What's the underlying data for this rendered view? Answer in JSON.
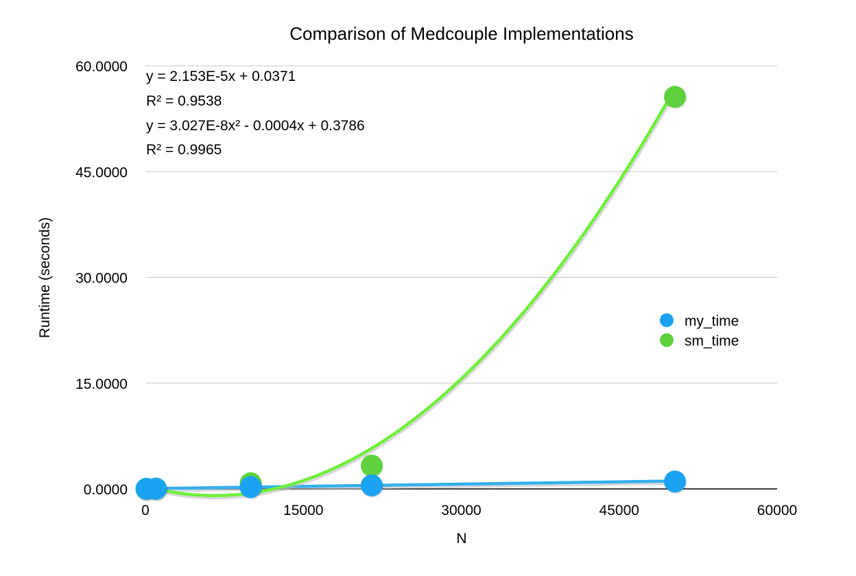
{
  "chart_data": {
    "type": "scatter",
    "title": "Comparison of Medcouple Implementations",
    "xlabel": "N",
    "ylabel": "Runtime (seconds)",
    "xlim": [
      0,
      60000
    ],
    "ylim": [
      0,
      60
    ],
    "x_ticks": [
      "0",
      "15000",
      "30000",
      "45000",
      "60000"
    ],
    "y_ticks": [
      "0.0000",
      "15.0000",
      "30.0000",
      "45.0000",
      "60.0000"
    ],
    "grid": true,
    "legend_position": "right",
    "series": [
      {
        "name": "my_time",
        "color": "#1aa3f0",
        "points": [
          [
            100,
            0.01
          ],
          [
            1000,
            0.03
          ],
          [
            10000,
            0.25
          ],
          [
            21500,
            0.5
          ],
          [
            50300,
            1.05
          ]
        ],
        "trendline": {
          "type": "linear",
          "slope": 2.153e-05,
          "intercept": 0.0371
        },
        "trendline_color": "#35b0ee"
      },
      {
        "name": "sm_time",
        "color": "#5ed13d",
        "points": [
          [
            100,
            0.02
          ],
          [
            1000,
            0.05
          ],
          [
            10000,
            0.8
          ],
          [
            21500,
            3.3
          ],
          [
            50300,
            55.6
          ]
        ],
        "trendline": {
          "type": "polynomial",
          "a": 3.027e-08,
          "b": -0.0004,
          "c": 0.3786
        },
        "trendline_color": "#6ff03a"
      }
    ],
    "annotations": [
      "y = 2.153E-5x + 0.0371",
      "R² = 0.9538",
      "y = 3.027E-8x² - 0.0004x + 0.3786",
      "R² = 0.9965"
    ]
  }
}
